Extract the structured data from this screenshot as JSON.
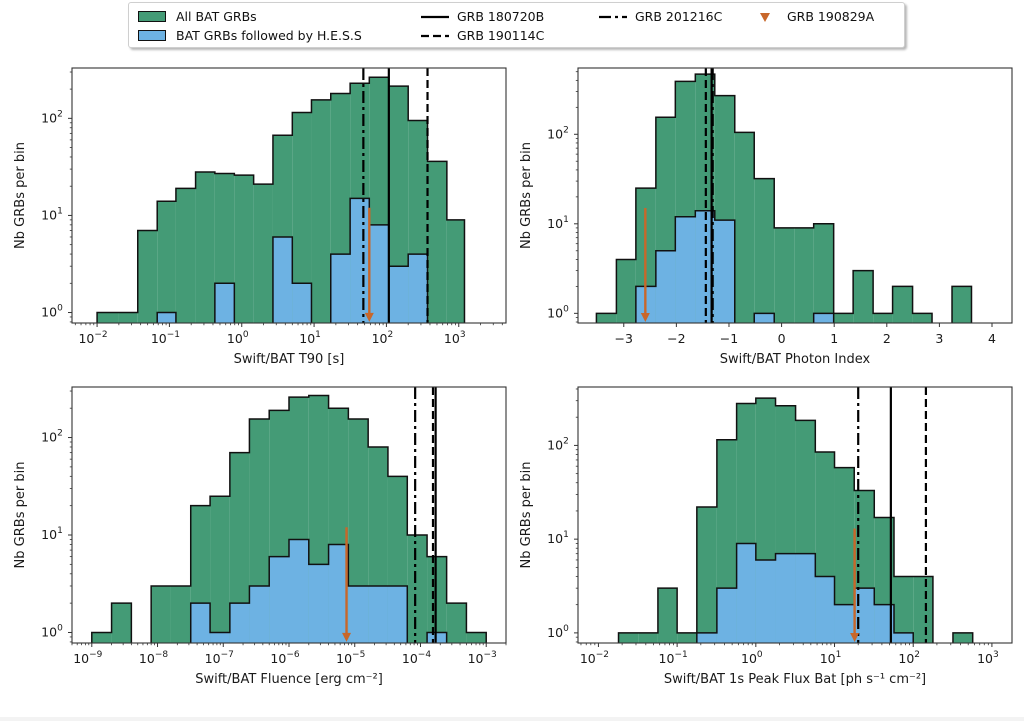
{
  "colors": {
    "all_bat": "#449b76",
    "hess": "#6db2e3",
    "arrow": "#c8672a",
    "line": "#000000"
  },
  "legend": {
    "items": [
      {
        "label": "All BAT GRBs",
        "kind": "patch",
        "color": "#449b76"
      },
      {
        "label": "BAT GRBs followed by H.E.S.S",
        "kind": "patch",
        "color": "#6db2e3"
      },
      {
        "label": "GRB 180720B",
        "kind": "solid"
      },
      {
        "label": "GRB 190114C",
        "kind": "dashed"
      },
      {
        "label": "GRB 201216C",
        "kind": "dashdot"
      },
      {
        "label": "GRB 190829A",
        "kind": "triangle",
        "color": "#c8672a"
      }
    ]
  },
  "chart_data": [
    {
      "id": "t90",
      "type": "histogram",
      "xscale": "log",
      "yscale": "log",
      "xlabel": "Swift/BAT T90 [s]",
      "ylabel": "Nb GRBs per bin",
      "xlim": [
        0.0045,
        4500
      ],
      "ylim": [
        0.78,
        330
      ],
      "xticks": [
        {
          "v": 0.01,
          "b": "10",
          "e": "−2"
        },
        {
          "v": 0.1,
          "b": "10",
          "e": "−1"
        },
        {
          "v": 1,
          "b": "10",
          "e": "0"
        },
        {
          "v": 10,
          "b": "10",
          "e": "1"
        },
        {
          "v": 100,
          "b": "10",
          "e": "2"
        },
        {
          "v": 1000,
          "b": "10",
          "e": "3"
        }
      ],
      "yticks": [
        {
          "v": 1,
          "b": "10",
          "e": "0"
        },
        {
          "v": 10,
          "b": "10",
          "e": "1"
        },
        {
          "v": 100,
          "b": "10",
          "e": "2"
        }
      ],
      "series": [
        {
          "name": "All BAT GRBs",
          "edges": [
            0.01,
            0.0195,
            0.0365,
            0.0678,
            0.123,
            0.23,
            0.425,
            0.79,
            1.46,
            2.7,
            5.0,
            9.2,
            17.0,
            31.5,
            58.0,
            108,
            200,
            370,
            685,
            1200
          ],
          "counts": [
            1,
            1,
            7,
            14,
            19,
            28,
            27,
            26,
            21,
            67,
            115,
            155,
            180,
            230,
            265,
            215,
            95,
            36,
            9
          ]
        },
        {
          "name": "BAT GRBs followed by H.E.S.S",
          "edges": [
            0.01,
            0.0195,
            0.0365,
            0.0678,
            0.123,
            0.23,
            0.425,
            0.79,
            1.46,
            2.7,
            5.0,
            9.2,
            17.0,
            31.5,
            58.0,
            108,
            200,
            370,
            685,
            1200
          ],
          "counts": [
            0,
            0,
            0,
            1,
            0,
            0,
            2,
            0,
            0,
            6,
            2,
            0,
            4,
            15,
            8,
            3,
            4,
            0,
            0
          ]
        }
      ],
      "vlines": [
        {
          "name": "GRB 180720B",
          "style": "solid",
          "x": 108
        },
        {
          "name": "GRB 190114C",
          "style": "dashed",
          "x": 370
        },
        {
          "name": "GRB 201216C",
          "style": "dashdot",
          "x": 48
        }
      ],
      "arrow": {
        "name": "GRB 190829A",
        "x": 58,
        "y_from": 12,
        "y_to": 0.82
      }
    },
    {
      "id": "photon_index",
      "type": "histogram",
      "xscale": "linear",
      "yscale": "log",
      "xlabel": "Swift/BAT Photon Index",
      "ylabel": "Nb GRBs per bin",
      "xlim": [
        -3.87,
        4.38
      ],
      "ylim": [
        0.78,
        550
      ],
      "xticks": [
        {
          "v": -3,
          "t": "−3"
        },
        {
          "v": -2,
          "t": "−2"
        },
        {
          "v": -1,
          "t": "−1"
        },
        {
          "v": 0,
          "t": "0"
        },
        {
          "v": 1,
          "t": "1"
        },
        {
          "v": 2,
          "t": "2"
        },
        {
          "v": 3,
          "t": "3"
        },
        {
          "v": 4,
          "t": "4"
        }
      ],
      "yticks": [
        {
          "v": 1,
          "b": "10",
          "e": "0"
        },
        {
          "v": 10,
          "b": "10",
          "e": "1"
        },
        {
          "v": 100,
          "b": "10",
          "e": "2"
        }
      ],
      "series": [
        {
          "name": "All BAT GRBs",
          "edges": [
            -3.52,
            -3.14,
            -2.77,
            -2.39,
            -2.02,
            -1.64,
            -1.27,
            -0.89,
            -0.52,
            -0.14,
            0.24,
            0.61,
            0.99,
            1.36,
            1.74,
            2.11,
            2.49,
            2.86,
            3.24,
            3.61
          ],
          "counts": [
            1,
            4,
            25,
            155,
            390,
            470,
            270,
            105,
            32,
            9,
            9,
            10,
            1,
            3,
            1,
            2,
            1,
            0,
            2
          ]
        },
        {
          "name": "BAT GRBs followed by H.E.S.S",
          "edges": [
            -3.52,
            -3.14,
            -2.77,
            -2.39,
            -2.02,
            -1.64,
            -1.27,
            -0.89,
            -0.52,
            -0.14,
            0.24,
            0.61,
            0.99,
            1.36,
            1.74,
            2.11,
            2.49,
            2.86,
            3.24,
            3.61
          ],
          "counts": [
            0,
            0,
            2,
            5,
            12,
            14,
            11,
            0,
            1,
            0,
            0,
            1,
            0,
            0,
            0,
            0,
            0,
            0,
            0
          ]
        }
      ],
      "vlines": [
        {
          "name": "GRB 180720B",
          "style": "solid",
          "x": -1.33
        },
        {
          "name": "GRB 190114C",
          "style": "dashed",
          "x": -1.44
        },
        {
          "name": "GRB 201216C",
          "style": "dashdot",
          "x": -1.31
        }
      ],
      "arrow": {
        "name": "GRB 190829A",
        "x": -2.59,
        "y_from": 15,
        "y_to": 0.82
      }
    },
    {
      "id": "fluence",
      "type": "histogram",
      "xscale": "log",
      "yscale": "log",
      "xlabel": "Swift/BAT Fluence [erg cm⁻²]",
      "ylabel": "Nb GRBs per bin",
      "xlim": [
        5e-10,
        0.002
      ],
      "ylim": [
        0.78,
        330
      ],
      "xticks": [
        {
          "v": 1e-09,
          "b": "10",
          "e": "−9"
        },
        {
          "v": 1e-08,
          "b": "10",
          "e": "−8"
        },
        {
          "v": 1e-07,
          "b": "10",
          "e": "−7"
        },
        {
          "v": 1e-06,
          "b": "10",
          "e": "−6"
        },
        {
          "v": 1e-05,
          "b": "10",
          "e": "−5"
        },
        {
          "v": 0.0001,
          "b": "10",
          "e": "−4"
        },
        {
          "v": 0.001,
          "b": "10",
          "e": "−3"
        }
      ],
      "yticks": [
        {
          "v": 1,
          "b": "10",
          "e": "0"
        },
        {
          "v": 10,
          "b": "10",
          "e": "1"
        },
        {
          "v": 100,
          "b": "10",
          "e": "2"
        }
      ],
      "series": [
        {
          "name": "All BAT GRBs",
          "edges": [
            1e-09,
            2e-09,
            4e-09,
            8e-09,
            1.6e-08,
            3.2e-08,
            6.3e-08,
            1.26e-07,
            2.5e-07,
            5e-07,
            1e-06,
            2e-06,
            4e-06,
            8e-06,
            1.6e-05,
            3.2e-05,
            6.3e-05,
            0.000126,
            0.00025,
            0.0005,
            0.001
          ],
          "counts": [
            1,
            2,
            0,
            3,
            3,
            20,
            25,
            70,
            155,
            190,
            260,
            270,
            200,
            155,
            80,
            40,
            10,
            6,
            2,
            1
          ]
        },
        {
          "name": "BAT GRBs followed by H.E.S.S",
          "edges": [
            1e-09,
            2e-09,
            4e-09,
            8e-09,
            1.6e-08,
            3.2e-08,
            6.3e-08,
            1.26e-07,
            2.5e-07,
            5e-07,
            1e-06,
            2e-06,
            4e-06,
            8e-06,
            1.6e-05,
            3.2e-05,
            6.3e-05,
            0.000126,
            0.00025,
            0.0005,
            0.001
          ],
          "counts": [
            0,
            0,
            0,
            0,
            0,
            2,
            1,
            2,
            3,
            6,
            9,
            5,
            8,
            3,
            3,
            3,
            0,
            1,
            0,
            0
          ]
        }
      ],
      "vlines": [
        {
          "name": "GRB 180720B",
          "style": "solid",
          "x": 0.00017
        },
        {
          "name": "GRB 190114C",
          "style": "dashed",
          "x": 0.000155
        },
        {
          "name": "GRB 201216C",
          "style": "dashdot",
          "x": 8.3e-05
        }
      ],
      "arrow": {
        "name": "GRB 190829A",
        "x": 7.5e-06,
        "y_from": 12,
        "y_to": 0.82
      }
    },
    {
      "id": "peak_flux",
      "type": "histogram",
      "xscale": "log",
      "yscale": "log",
      "xlabel": "Swift/BAT 1s Peak Flux Bat [ph s⁻¹ cm⁻²]",
      "ylabel": "Nb GRBs per bin",
      "xlim": [
        0.0055,
        1800
      ],
      "ylim": [
        0.78,
        420
      ],
      "xticks": [
        {
          "v": 0.01,
          "b": "10",
          "e": "−2"
        },
        {
          "v": 0.1,
          "b": "10",
          "e": "−1"
        },
        {
          "v": 1,
          "b": "10",
          "e": "0"
        },
        {
          "v": 10,
          "b": "10",
          "e": "1"
        },
        {
          "v": 100,
          "b": "10",
          "e": "2"
        },
        {
          "v": 1000,
          "b": "10",
          "e": "3"
        }
      ],
      "yticks": [
        {
          "v": 1,
          "b": "10",
          "e": "0"
        },
        {
          "v": 10,
          "b": "10",
          "e": "1"
        },
        {
          "v": 100,
          "b": "10",
          "e": "2"
        }
      ],
      "series": [
        {
          "name": "All BAT GRBs",
          "edges": [
            0.018,
            0.032,
            0.057,
            0.1,
            0.178,
            0.32,
            0.57,
            1.0,
            1.78,
            3.2,
            5.7,
            10,
            17.8,
            32,
            57,
            100,
            178,
            320,
            570
          ],
          "counts": [
            1,
            1,
            3,
            1,
            22,
            115,
            280,
            320,
            265,
            185,
            85,
            58,
            33,
            17,
            4,
            4,
            0,
            1
          ]
        },
        {
          "name": "BAT GRBs followed by H.E.S.S",
          "edges": [
            0.018,
            0.032,
            0.057,
            0.1,
            0.178,
            0.32,
            0.57,
            1.0,
            1.78,
            3.2,
            5.7,
            10,
            17.8,
            32,
            57,
            100,
            178,
            320,
            570
          ],
          "counts": [
            0,
            0,
            0,
            0,
            1,
            3,
            9,
            6,
            7,
            7,
            4,
            2,
            3,
            2,
            1,
            0,
            0,
            0
          ]
        }
      ],
      "vlines": [
        {
          "name": "GRB 180720B",
          "style": "solid",
          "x": 52
        },
        {
          "name": "GRB 190114C",
          "style": "dashed",
          "x": 145
        },
        {
          "name": "GRB 201216C",
          "style": "dashdot",
          "x": 20
        }
      ],
      "arrow": {
        "name": "GRB 190829A",
        "x": 18,
        "y_from": 13,
        "y_to": 0.82
      }
    }
  ]
}
